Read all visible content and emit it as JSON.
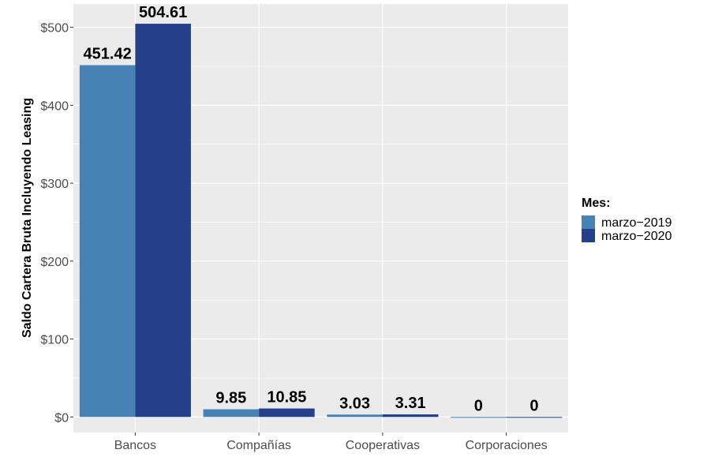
{
  "chart_data": {
    "type": "bar",
    "categories": [
      "Bancos",
      "Compañías",
      "Cooperativas",
      "Corporaciones"
    ],
    "series": [
      {
        "name": "marzo−2019",
        "values": [
          451.42,
          9.85,
          3.03,
          0
        ],
        "labels": [
          "451.42",
          "9.85",
          "3.03",
          "0"
        ],
        "color": "#4682b4"
      },
      {
        "name": "marzo−2020",
        "values": [
          504.61,
          10.85,
          3.31,
          0
        ],
        "labels": [
          "504.61",
          "10.85",
          "3.31",
          "0"
        ],
        "color": "#253f8a"
      }
    ],
    "ylabel": "Saldo Cartera Bruta Incluyendo Leasing",
    "xlabel": "",
    "ylim": [
      -20,
      530
    ],
    "yticks": [
      0,
      100,
      200,
      300,
      400,
      500
    ],
    "ytick_labels": [
      "$0",
      "$100",
      "$200",
      "$300",
      "$400",
      "$500"
    ],
    "legend": {
      "title": "Mes:",
      "position": "right"
    },
    "grid": true,
    "panel_background": "#ebebeb",
    "grid_color": "#ffffff"
  }
}
